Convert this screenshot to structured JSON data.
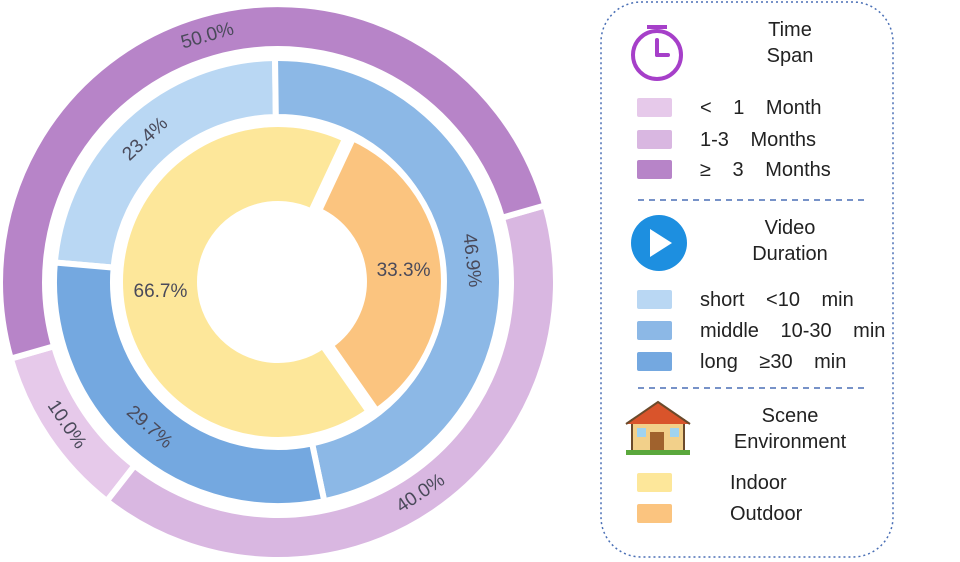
{
  "chart_data": {
    "type": "nested-donut",
    "series": [
      {
        "name": "Time Span",
        "categories": [
          "< 1 Month",
          "1-3 Months",
          "≥ 3 Months"
        ],
        "values": [
          10.0,
          40.0,
          50.0
        ],
        "value_labels": [
          "10.0%",
          "40.0%",
          "50.0%"
        ],
        "colors": [
          "#e6c9ea",
          "#d9b7e1",
          "#b784c8"
        ]
      },
      {
        "name": "Video Duration",
        "categories": [
          "short <10 min",
          "middle 10-30 min",
          "long ≥30 min"
        ],
        "values": [
          23.4,
          46.9,
          29.7
        ],
        "value_labels": [
          "23.4%",
          "46.9%",
          "29.7%"
        ],
        "colors": [
          "#b9d7f3",
          "#8cb8e6",
          "#74a8e0"
        ]
      },
      {
        "name": "Scene Environment",
        "categories": [
          "Indoor",
          "Outdoor"
        ],
        "values": [
          66.7,
          33.3
        ],
        "value_labels": [
          "66.7%",
          "33.3%"
        ],
        "colors": [
          "#fde79a",
          "#fbc47f"
        ]
      }
    ]
  }
}
